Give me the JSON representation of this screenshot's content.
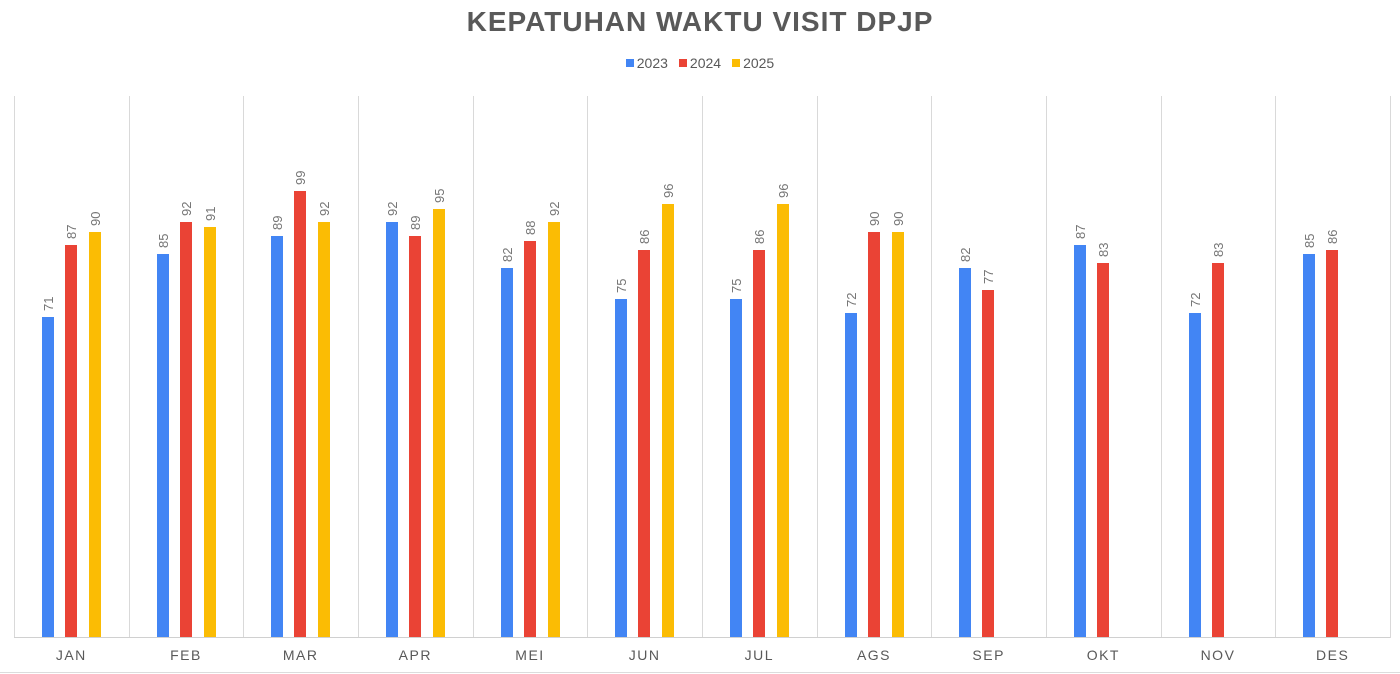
{
  "chart_data": {
    "type": "bar",
    "title": "KEPATUHAN WAKTU VISIT DPJP",
    "xlabel": "",
    "ylabel": "",
    "ylim": [
      0,
      120
    ],
    "grid": "vertical category separators",
    "legend_position": "top",
    "categories": [
      "JAN",
      "FEB",
      "MAR",
      "APR",
      "MEI",
      "JUN",
      "JUL",
      "AGS",
      "SEP",
      "OKT",
      "NOV",
      "DES"
    ],
    "series": [
      {
        "name": "2023",
        "color": "#4285f4",
        "values": [
          71,
          85,
          89,
          92,
          82,
          75,
          75,
          72,
          82,
          87,
          72,
          85
        ]
      },
      {
        "name": "2024",
        "color": "#ea4335",
        "values": [
          87,
          92,
          99,
          89,
          88,
          86,
          86,
          90,
          77,
          83,
          83,
          86
        ]
      },
      {
        "name": "2025",
        "color": "#fbbc04",
        "values": [
          90,
          91,
          92,
          95,
          92,
          96,
          96,
          90,
          null,
          null,
          null,
          null
        ]
      }
    ]
  }
}
